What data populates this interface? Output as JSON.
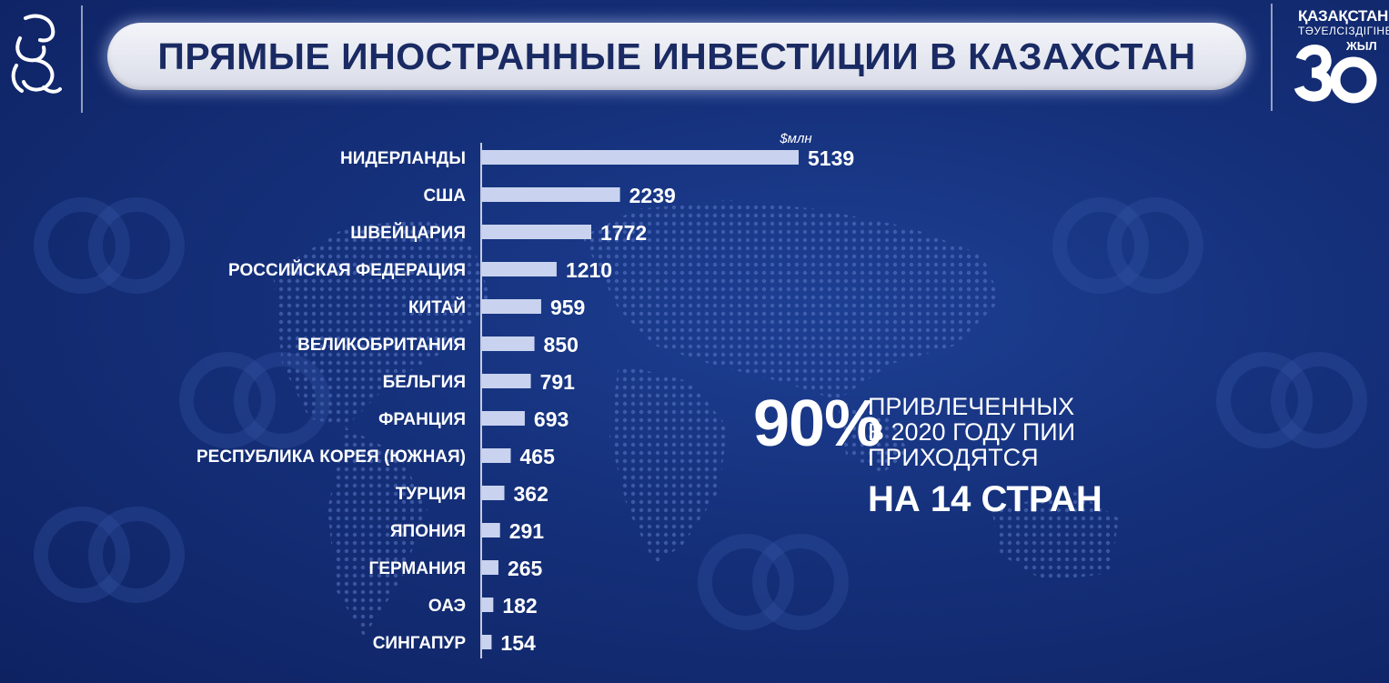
{
  "header": {
    "title": "ПРЯМЫЕ ИНОСТРАННЫЕ ИНВЕСТИЦИИ В КАЗАХСТАН"
  },
  "brand": {
    "anniversary_title": "ҚАЗАҚСТАН",
    "anniversary_subtitle": "ТӘУЕЛСІЗДІГІНЕ",
    "anniversary_word": "ЖЫЛ",
    "anniversary_number": "30",
    "left_logo_icon": "snow-leopard-emblem-icon"
  },
  "colors": {
    "background": "#15307a",
    "bar": "#c9d3ef",
    "title_text": "#1a2a63"
  },
  "chart_data": {
    "type": "bar",
    "orientation": "horizontal",
    "unit": "$млн",
    "categories": [
      "НИДЕРЛАНДЫ",
      "США",
      "ШВЕЙЦАРИЯ",
      "РОССИЙСКАЯ ФЕДЕРАЦИЯ",
      "КИТАЙ",
      "ВЕЛИКОБРИТАНИЯ",
      "БЕЛЬГИЯ",
      "ФРАНЦИЯ",
      "РЕСПУБЛИКА КОРЕЯ (ЮЖНАЯ)",
      "ТУРЦИЯ",
      "ЯПОНИЯ",
      "ГЕРМАНИЯ",
      "ОАЭ",
      "СИНГАПУР"
    ],
    "values": [
      5139,
      2239,
      1772,
      1210,
      959,
      850,
      791,
      693,
      465,
      362,
      291,
      265,
      182,
      154
    ],
    "title": "",
    "xlabel": "",
    "ylabel": "",
    "grid": false,
    "legend": "none"
  },
  "callout": {
    "percent": "90%",
    "line1": "ПРИВЛЕЧЕННЫХ",
    "line2": "В 2020 ГОДУ ПИИ",
    "line3": "ПРИХОДЯТСЯ",
    "emphasis": "НА 14 СТРАН"
  }
}
